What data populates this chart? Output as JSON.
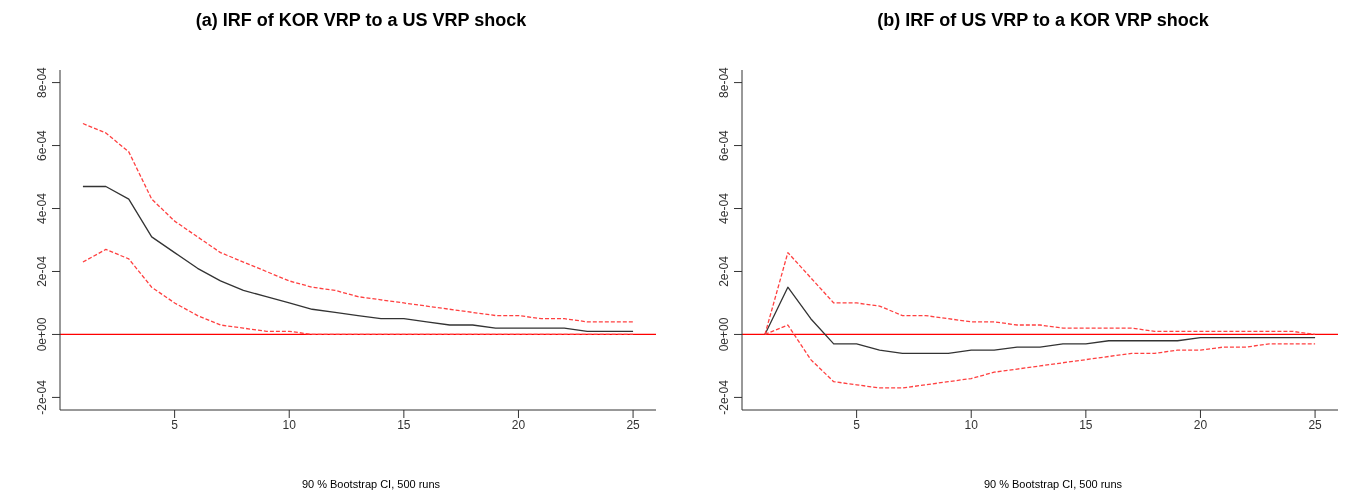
{
  "chart_data": [
    {
      "type": "line",
      "title": "(a) IRF of KOR VRP to a US VRP shock",
      "annotations": [
        "90 % Bootstrap CI,  500 runs"
      ],
      "x": [
        1,
        2,
        3,
        4,
        5,
        6,
        7,
        8,
        9,
        10,
        11,
        12,
        13,
        14,
        15,
        16,
        17,
        18,
        19,
        20,
        21,
        22,
        23,
        24,
        25
      ],
      "series": [
        {
          "color": "#333333",
          "line_style": "solid",
          "values": [
            0.00047,
            0.00047,
            0.00043,
            0.00031,
            0.00026,
            0.00021,
            0.00017,
            0.00014,
            0.00012,
            0.0001,
            8e-05,
            7e-05,
            6e-05,
            5e-05,
            5e-05,
            4e-05,
            3e-05,
            3e-05,
            2e-05,
            2e-05,
            2e-05,
            2e-05,
            1e-05,
            1e-05,
            1e-05
          ]
        },
        {
          "color": "#ff4040",
          "line_style": "dashed",
          "values": [
            0.00067,
            0.00064,
            0.00058,
            0.00043,
            0.00036,
            0.00031,
            0.00026,
            0.00023,
            0.0002,
            0.00017,
            0.00015,
            0.00014,
            0.00012,
            0.00011,
            0.0001,
            9e-05,
            8e-05,
            7e-05,
            6e-05,
            6e-05,
            5e-05,
            5e-05,
            4e-05,
            4e-05,
            4e-05
          ]
        },
        {
          "color": "#ff4040",
          "line_style": "dashed",
          "values": [
            0.00023,
            0.00027,
            0.00024,
            0.00015,
            0.0001,
            6e-05,
            3e-05,
            2e-05,
            1e-05,
            1e-05,
            0,
            0,
            0,
            0,
            0,
            0,
            0,
            0,
            0,
            0,
            0,
            0,
            0,
            0,
            0
          ]
        }
      ],
      "xlim": [
        0,
        26
      ],
      "xticks": [
        5,
        10,
        15,
        20,
        25
      ],
      "ylim": [
        -0.00024,
        0.00084
      ],
      "yticks": [
        {
          "value": -0.0002,
          "label": "-2e-04"
        },
        {
          "value": 0,
          "label": "0e+00"
        },
        {
          "value": 0.0002,
          "label": "2e-04"
        },
        {
          "value": 0.0004,
          "label": "4e-04"
        },
        {
          "value": 0.0006,
          "label": "6e-04"
        },
        {
          "value": 0.0008,
          "label": "8e-04"
        }
      ],
      "ref_lines": [
        {
          "axis": "y",
          "value": 0,
          "color": "#ff0000",
          "line_style": "solid"
        }
      ],
      "grid": false,
      "legend": false,
      "marker": "none"
    },
    {
      "type": "line",
      "title": "(b) IRF of US VRP to a KOR VRP shock",
      "annotations": [
        "90 % Bootstrap CI,  500 runs"
      ],
      "x": [
        1,
        2,
        3,
        4,
        5,
        6,
        7,
        8,
        9,
        10,
        11,
        12,
        13,
        14,
        15,
        16,
        17,
        18,
        19,
        20,
        21,
        22,
        23,
        24,
        25
      ],
      "series": [
        {
          "color": "#333333",
          "line_style": "solid",
          "values": [
            0,
            0.00015,
            5e-05,
            -3e-05,
            -3e-05,
            -5e-05,
            -6e-05,
            -6e-05,
            -6e-05,
            -5e-05,
            -5e-05,
            -4e-05,
            -4e-05,
            -3e-05,
            -3e-05,
            -2e-05,
            -2e-05,
            -2e-05,
            -2e-05,
            -1e-05,
            -1e-05,
            -1e-05,
            -1e-05,
            -1e-05,
            -1e-05
          ]
        },
        {
          "color": "#ff4040",
          "line_style": "dashed",
          "values": [
            0,
            0.00026,
            0.00018,
            0.0001,
            0.0001,
            9e-05,
            6e-05,
            6e-05,
            5e-05,
            4e-05,
            4e-05,
            3e-05,
            3e-05,
            2e-05,
            2e-05,
            2e-05,
            2e-05,
            1e-05,
            1e-05,
            1e-05,
            1e-05,
            1e-05,
            1e-05,
            1e-05,
            0
          ]
        },
        {
          "color": "#ff4040",
          "line_style": "dashed",
          "values": [
            0,
            3e-05,
            -8e-05,
            -0.00015,
            -0.00016,
            -0.00017,
            -0.00017,
            -0.00016,
            -0.00015,
            -0.00014,
            -0.00012,
            -0.00011,
            -0.0001,
            -9e-05,
            -8e-05,
            -7e-05,
            -6e-05,
            -6e-05,
            -5e-05,
            -5e-05,
            -4e-05,
            -4e-05,
            -3e-05,
            -3e-05,
            -3e-05
          ]
        }
      ],
      "xlim": [
        0,
        26
      ],
      "xticks": [
        5,
        10,
        15,
        20,
        25
      ],
      "ylim": [
        -0.00024,
        0.00084
      ],
      "yticks": [
        {
          "value": -0.0002,
          "label": "-2e-04"
        },
        {
          "value": 0,
          "label": "0e+00"
        },
        {
          "value": 0.0002,
          "label": "2e-04"
        },
        {
          "value": 0.0004,
          "label": "4e-04"
        },
        {
          "value": 0.0006,
          "label": "6e-04"
        },
        {
          "value": 0.0008,
          "label": "8e-04"
        }
      ],
      "ref_lines": [
        {
          "axis": "y",
          "value": 0,
          "color": "#ff0000",
          "line_style": "solid"
        }
      ],
      "grid": false,
      "legend": false,
      "marker": "none"
    }
  ]
}
